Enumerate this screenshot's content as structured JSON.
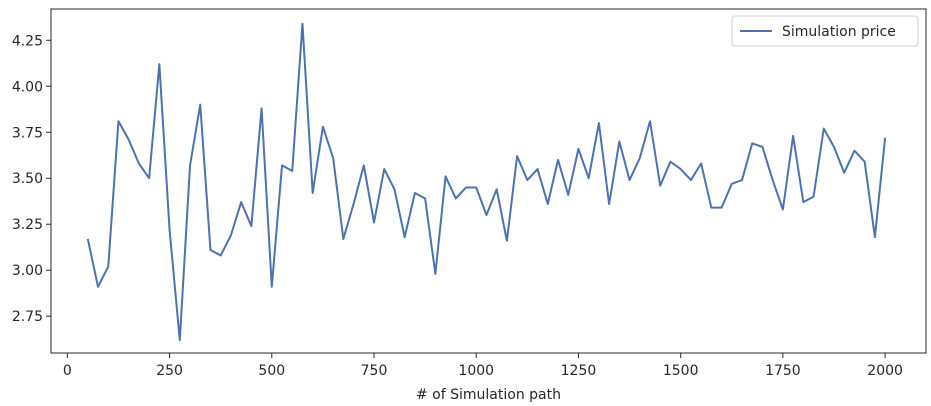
{
  "chart_data": {
    "type": "line",
    "title": "",
    "xlabel": "# of Simulation path",
    "ylabel": "",
    "xlim": [
      -40,
      2100
    ],
    "ylim": [
      2.55,
      4.42
    ],
    "xticks": [
      0,
      250,
      500,
      750,
      1000,
      1250,
      1500,
      1750,
      2000
    ],
    "xtick_labels": [
      "0",
      "250",
      "500",
      "750",
      "1000",
      "1250",
      "1500",
      "1750",
      "2000"
    ],
    "yticks": [
      2.75,
      3.0,
      3.25,
      3.5,
      3.75,
      4.0,
      4.25
    ],
    "ytick_labels": [
      "2.75",
      "3.00",
      "3.25",
      "3.50",
      "3.75",
      "4.00",
      "4.25"
    ],
    "grid": false,
    "legend_position": "top-right",
    "series": [
      {
        "name": "Simulation price",
        "color": "#4c72b0",
        "x": [
          50,
          75,
          100,
          125,
          150,
          175,
          200,
          225,
          250,
          275,
          300,
          325,
          350,
          375,
          400,
          425,
          450,
          475,
          500,
          525,
          550,
          575,
          600,
          625,
          650,
          675,
          700,
          725,
          750,
          775,
          800,
          825,
          850,
          875,
          900,
          925,
          950,
          975,
          1000,
          1025,
          1050,
          1075,
          1100,
          1125,
          1150,
          1175,
          1200,
          1225,
          1250,
          1275,
          1300,
          1325,
          1350,
          1375,
          1400,
          1425,
          1450,
          1475,
          1500,
          1525,
          1550,
          1575,
          1600,
          1625,
          1650,
          1675,
          1700,
          1725,
          1750,
          1775,
          1800,
          1825,
          1850,
          1875,
          1900,
          1925,
          1950,
          1975,
          2000
        ],
        "y": [
          3.17,
          2.91,
          3.02,
          3.81,
          3.71,
          3.58,
          3.5,
          4.12,
          3.22,
          2.62,
          3.57,
          3.9,
          3.11,
          3.08,
          3.19,
          3.37,
          3.24,
          3.88,
          2.91,
          3.57,
          3.54,
          4.34,
          3.42,
          3.78,
          3.61,
          3.17,
          3.36,
          3.57,
          3.26,
          3.55,
          3.44,
          3.18,
          3.42,
          3.39,
          2.98,
          3.51,
          3.39,
          3.45,
          3.45,
          3.3,
          3.44,
          3.16,
          3.62,
          3.49,
          3.55,
          3.36,
          3.6,
          3.41,
          3.66,
          3.5,
          3.8,
          3.36,
          3.7,
          3.49,
          3.61,
          3.81,
          3.46,
          3.59,
          3.55,
          3.49,
          3.58,
          3.34,
          3.34,
          3.47,
          3.49,
          3.69,
          3.67,
          3.49,
          3.33,
          3.73,
          3.37,
          3.4,
          3.77,
          3.67,
          3.53,
          3.65,
          3.59,
          3.18,
          3.72
        ]
      }
    ]
  }
}
